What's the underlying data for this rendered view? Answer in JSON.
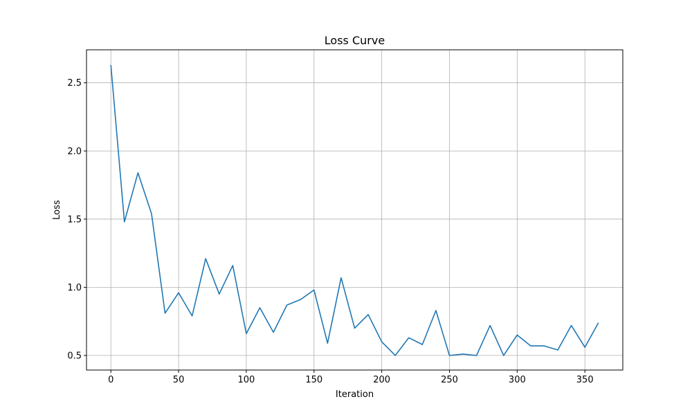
{
  "chart_data": {
    "type": "line",
    "title": "Loss Curve",
    "xlabel": "Iteration",
    "ylabel": "Loss",
    "xlim": [
      -18,
      378
    ],
    "ylim": [
      0.393,
      2.742
    ],
    "xticks": [
      0,
      50,
      100,
      150,
      200,
      250,
      300,
      350
    ],
    "yticks": [
      0.5,
      1.0,
      1.5,
      2.0,
      2.5
    ],
    "xtick_labels": [
      "0",
      "50",
      "100",
      "150",
      "200",
      "250",
      "300",
      "350"
    ],
    "ytick_labels": [
      "0.5",
      "1.0",
      "1.5",
      "2.0",
      "2.5"
    ],
    "grid": true,
    "line_color": "#1f77b4",
    "series": [
      {
        "x": [
          0,
          10,
          20,
          30,
          40,
          50,
          60,
          70,
          80,
          90,
          100,
          110,
          120,
          130,
          140,
          150,
          160,
          170,
          180,
          190,
          200,
          210,
          220,
          230,
          240,
          250,
          260,
          270,
          280,
          290,
          300,
          310,
          320,
          330,
          340,
          350,
          360
        ],
        "values": [
          2.63,
          1.48,
          1.84,
          1.54,
          0.81,
          0.96,
          0.79,
          1.21,
          0.95,
          1.16,
          0.66,
          0.85,
          0.67,
          0.87,
          0.91,
          0.98,
          0.59,
          1.07,
          0.7,
          0.8,
          0.6,
          0.5,
          0.63,
          0.58,
          0.83,
          0.5,
          0.51,
          0.5,
          0.72,
          0.5,
          0.65,
          0.57,
          0.57,
          0.54,
          0.72,
          0.56,
          0.74
        ]
      }
    ]
  }
}
